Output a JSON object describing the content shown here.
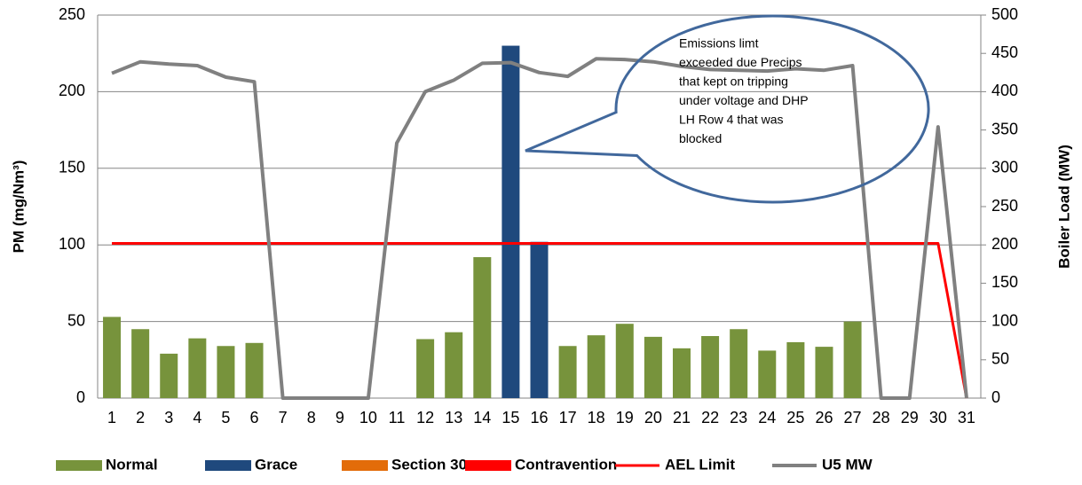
{
  "chart_data": {
    "type": "bar",
    "ylabel": "PM (mg/Nm³)",
    "y2label": "Boiler Load (MW)",
    "categories": [
      "1",
      "2",
      "3",
      "4",
      "5",
      "6",
      "7",
      "8",
      "9",
      "10",
      "11",
      "12",
      "13",
      "14",
      "15",
      "16",
      "17",
      "18",
      "19",
      "20",
      "21",
      "22",
      "23",
      "24",
      "25",
      "26",
      "27",
      "28",
      "29",
      "30",
      "31"
    ],
    "ylim": [
      0,
      250
    ],
    "yticks": [
      0,
      50,
      100,
      150,
      200,
      250
    ],
    "y2lim": [
      0,
      500
    ],
    "y2ticks": [
      0,
      50,
      100,
      150,
      200,
      250,
      300,
      350,
      400,
      450,
      500
    ],
    "grid": true,
    "legend": "bottom",
    "annotation": [
      "Emissions limt",
      "exceeded due Precips",
      "that kept on tripping",
      "under voltage and DHP",
      "LH Row 4 that was",
      "blocked"
    ],
    "series": [
      {
        "name": "Normal",
        "type": "bar",
        "color": "#77933c",
        "values": [
          53,
          45,
          29,
          39,
          34,
          36,
          null,
          null,
          null,
          null,
          null,
          38.5,
          43,
          92,
          null,
          null,
          34,
          41,
          48.5,
          40,
          32.5,
          40.5,
          45,
          31,
          36.5,
          33.5,
          50,
          null,
          null,
          null,
          null
        ]
      },
      {
        "name": "Grace",
        "type": "bar",
        "color": "#1f497d",
        "values": [
          null,
          null,
          null,
          null,
          null,
          null,
          null,
          null,
          null,
          null,
          null,
          null,
          null,
          null,
          230,
          102,
          null,
          null,
          null,
          null,
          null,
          null,
          null,
          null,
          null,
          null,
          null,
          null,
          null,
          null,
          null
        ]
      },
      {
        "name": "Section 30",
        "type": "bar",
        "color": "#e36c09",
        "values": [
          null,
          null,
          null,
          null,
          null,
          null,
          null,
          null,
          null,
          null,
          null,
          null,
          null,
          null,
          null,
          null,
          null,
          null,
          null,
          null,
          null,
          null,
          null,
          null,
          null,
          null,
          null,
          null,
          null,
          null,
          null
        ]
      },
      {
        "name": "Contravention",
        "type": "bar",
        "color": "#ff0000",
        "values": [
          null,
          null,
          null,
          null,
          null,
          null,
          null,
          null,
          null,
          null,
          null,
          null,
          null,
          null,
          null,
          null,
          null,
          null,
          null,
          null,
          null,
          null,
          null,
          null,
          null,
          null,
          null,
          null,
          null,
          null,
          null
        ]
      },
      {
        "name": "AEL Limit",
        "type": "line",
        "color": "#ff0000",
        "values": [
          101,
          101,
          101,
          101,
          101,
          101,
          101,
          101,
          101,
          101,
          101,
          101,
          101,
          101,
          101,
          101,
          101,
          101,
          101,
          101,
          101,
          101,
          101,
          101,
          101,
          101,
          101,
          101,
          101,
          101,
          0
        ]
      },
      {
        "name": "U5 MW",
        "type": "line",
        "color": "#808080",
        "axis": "y2",
        "values": [
          424,
          439,
          436,
          434,
          419,
          413,
          0,
          0,
          0,
          0,
          333,
          400,
          415,
          437,
          438,
          425,
          420,
          443,
          442,
          439,
          433,
          429,
          428,
          427,
          430,
          428,
          434,
          0,
          0,
          354,
          0
        ]
      }
    ]
  }
}
